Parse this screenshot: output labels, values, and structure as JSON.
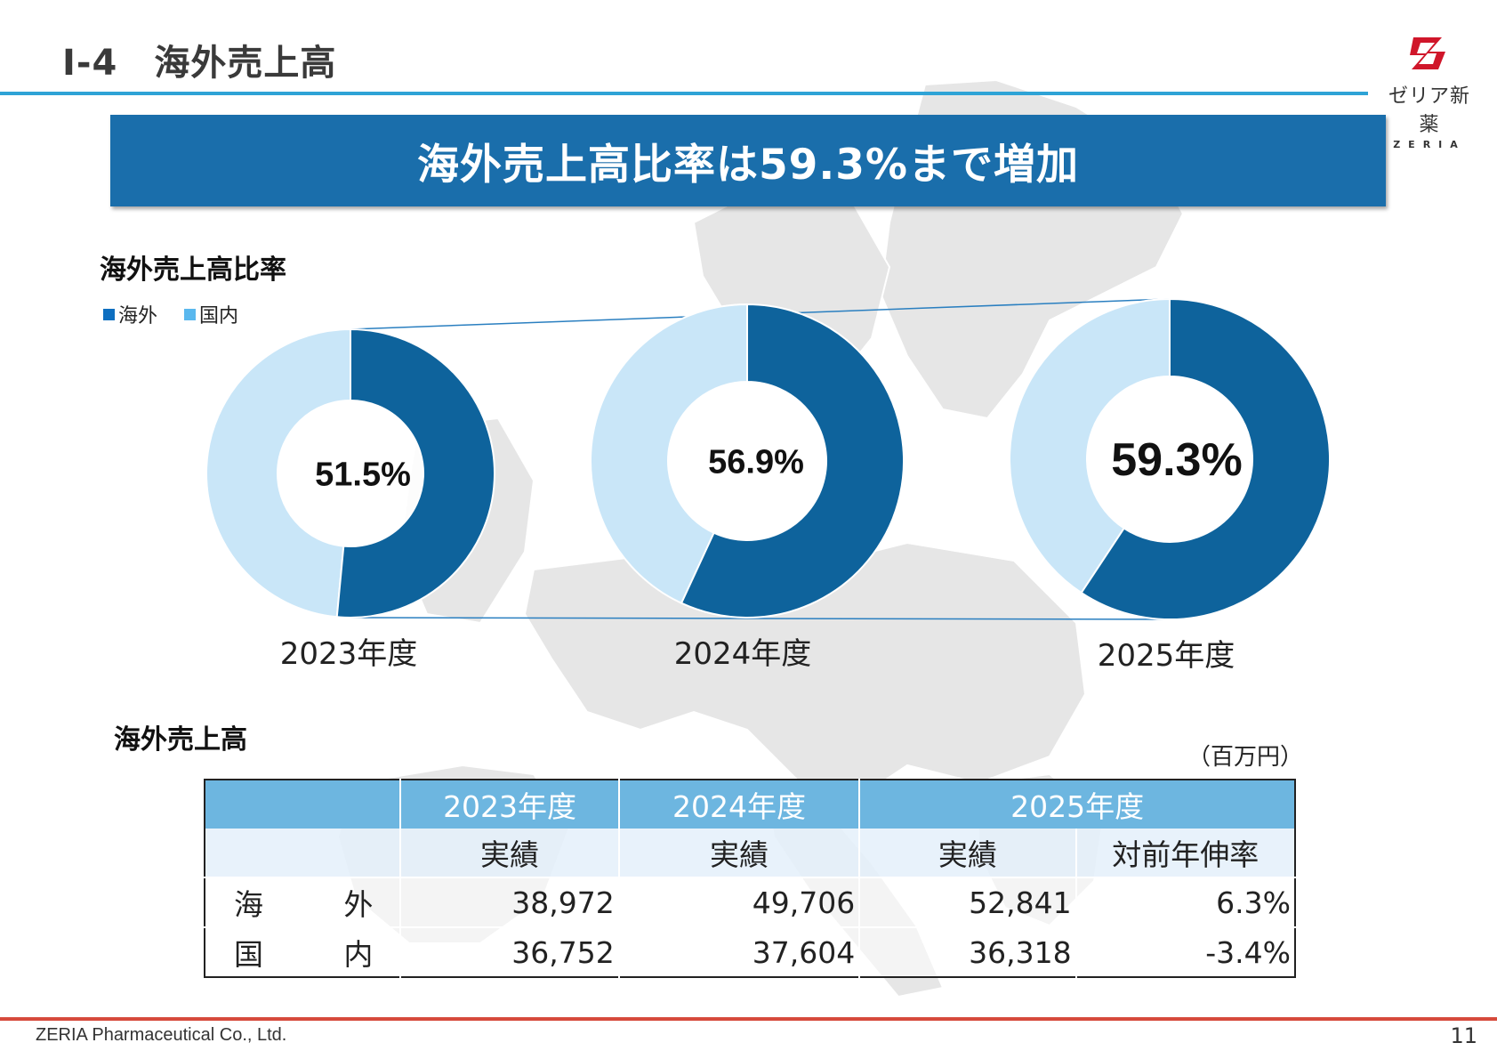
{
  "header": {
    "title": "I-4　海外売上高",
    "logo_brand": "ゼリア新薬",
    "logo_sub": "ZERIA"
  },
  "banner": {
    "text": "海外売上高比率は59.3%まで増加"
  },
  "ratio_section": {
    "heading": "海外売上高比率",
    "legend": [
      {
        "label": "海外",
        "color": "#0e639c"
      },
      {
        "label": "国内",
        "color": "#5ab8ee"
      }
    ]
  },
  "chart_data": {
    "type": "pie",
    "series_names": [
      "海外",
      "国内"
    ],
    "colors": {
      "overseas": "#0e639c",
      "domestic": "#c9e6f8"
    },
    "charts": [
      {
        "year": "2023年度",
        "overseas_pct": 51.5,
        "label": "51.5%"
      },
      {
        "year": "2024年度",
        "overseas_pct": 56.9,
        "label": "56.9%"
      },
      {
        "year": "2025年度",
        "overseas_pct": 59.3,
        "label": "59.3%"
      }
    ]
  },
  "sales_section": {
    "heading": "海外売上高",
    "unit": "（百万円）",
    "columns": [
      "2023年度",
      "2024年度",
      "2025年度"
    ],
    "subcolumns": [
      "実績",
      "実績",
      "実績",
      "対前年伸率"
    ],
    "rows": [
      {
        "label_a": "海",
        "label_b": "外",
        "values": [
          "38,972",
          "49,706",
          "52,841",
          "6.3%"
        ]
      },
      {
        "label_a": "国",
        "label_b": "内",
        "values": [
          "36,752",
          "37,604",
          "36,318",
          "-3.4%"
        ]
      }
    ]
  },
  "footer": {
    "company": "ZERIA Pharmaceutical Co., Ltd.",
    "page": "11"
  }
}
